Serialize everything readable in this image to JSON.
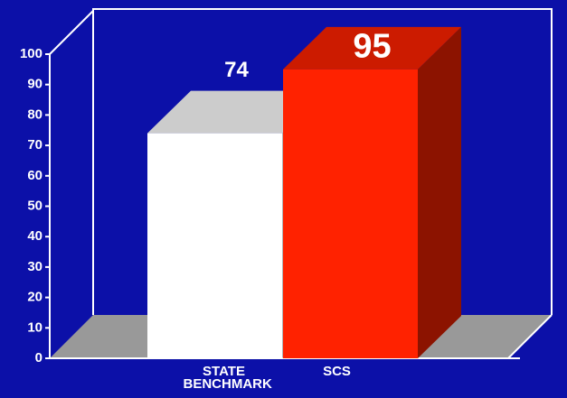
{
  "chart_data": {
    "type": "bar3d",
    "categories": [
      "STATE BENCHMARK",
      "SCS"
    ],
    "values": [
      74,
      95
    ],
    "colors": [
      "#ffffff",
      "#ff2200"
    ],
    "ylim": [
      0,
      100
    ],
    "yticks": [
      0,
      10,
      20,
      30,
      40,
      50,
      60,
      70,
      80,
      90,
      100
    ]
  }
}
